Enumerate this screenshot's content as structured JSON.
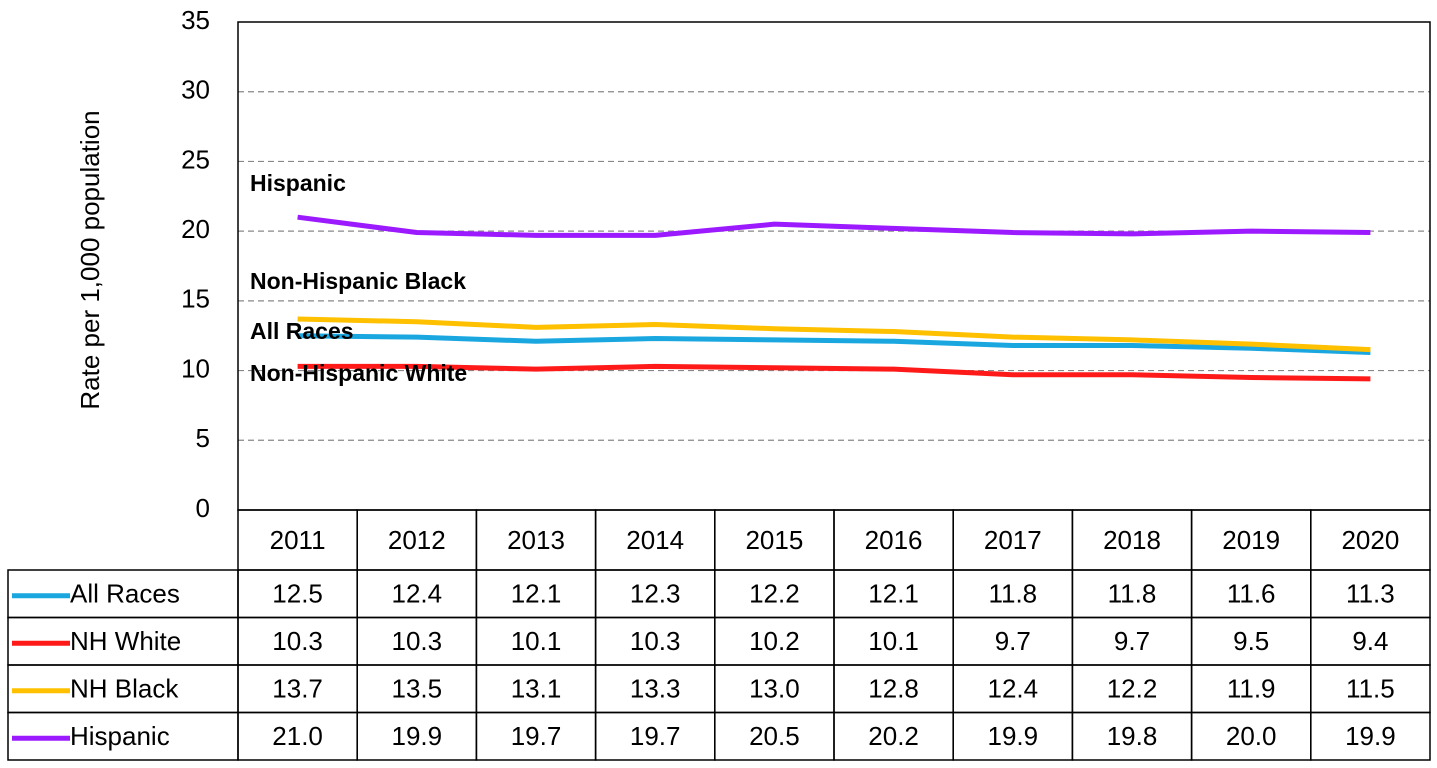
{
  "chart_data": {
    "type": "line",
    "y_label": "Rate per 1,000 population",
    "categories": [
      "2011",
      "2012",
      "2013",
      "2014",
      "2015",
      "2016",
      "2017",
      "2018",
      "2019",
      "2020"
    ],
    "series": [
      {
        "name": "All Races",
        "color": "#1aa7e0",
        "values": [
          12.5,
          12.4,
          12.1,
          12.3,
          12.2,
          12.1,
          11.8,
          11.8,
          11.6,
          11.3
        ],
        "value_labels": [
          "12.5",
          "12.4",
          "12.1",
          "12.3",
          "12.2",
          "12.1",
          "11.8",
          "11.8",
          "11.6",
          "11.3"
        ]
      },
      {
        "name": "NH White",
        "color": "#ff1a1a",
        "values": [
          10.3,
          10.3,
          10.1,
          10.3,
          10.2,
          10.1,
          9.7,
          9.7,
          9.5,
          9.4
        ],
        "value_labels": [
          "10.3",
          "10.3",
          "10.1",
          "10.3",
          "10.2",
          "10.1",
          "9.7",
          "9.7",
          "9.5",
          "9.4"
        ]
      },
      {
        "name": "NH Black",
        "color": "#ffc000",
        "values": [
          13.7,
          13.5,
          13.1,
          13.3,
          13.0,
          12.8,
          12.4,
          12.2,
          11.9,
          11.5
        ],
        "value_labels": [
          "13.7",
          "13.5",
          "13.1",
          "13.3",
          "13.0",
          "12.8",
          "12.4",
          "12.2",
          "11.9",
          "11.5"
        ]
      },
      {
        "name": "Hispanic",
        "color": "#9b1aff",
        "values": [
          21.0,
          19.9,
          19.7,
          19.7,
          20.5,
          20.2,
          19.9,
          19.8,
          20.0,
          19.9
        ],
        "value_labels": [
          "21.0",
          "19.9",
          "19.7",
          "19.7",
          "20.5",
          "20.2",
          "19.9",
          "19.8",
          "20.0",
          "19.9"
        ]
      }
    ],
    "annotations": [
      "Hispanic",
      "Non-Hispanic Black",
      "All Races",
      "Non-Hispanic White"
    ],
    "ylim": [
      0,
      35
    ],
    "yticks": [
      0,
      5,
      10,
      15,
      20,
      25,
      30,
      35
    ],
    "grid": true
  }
}
